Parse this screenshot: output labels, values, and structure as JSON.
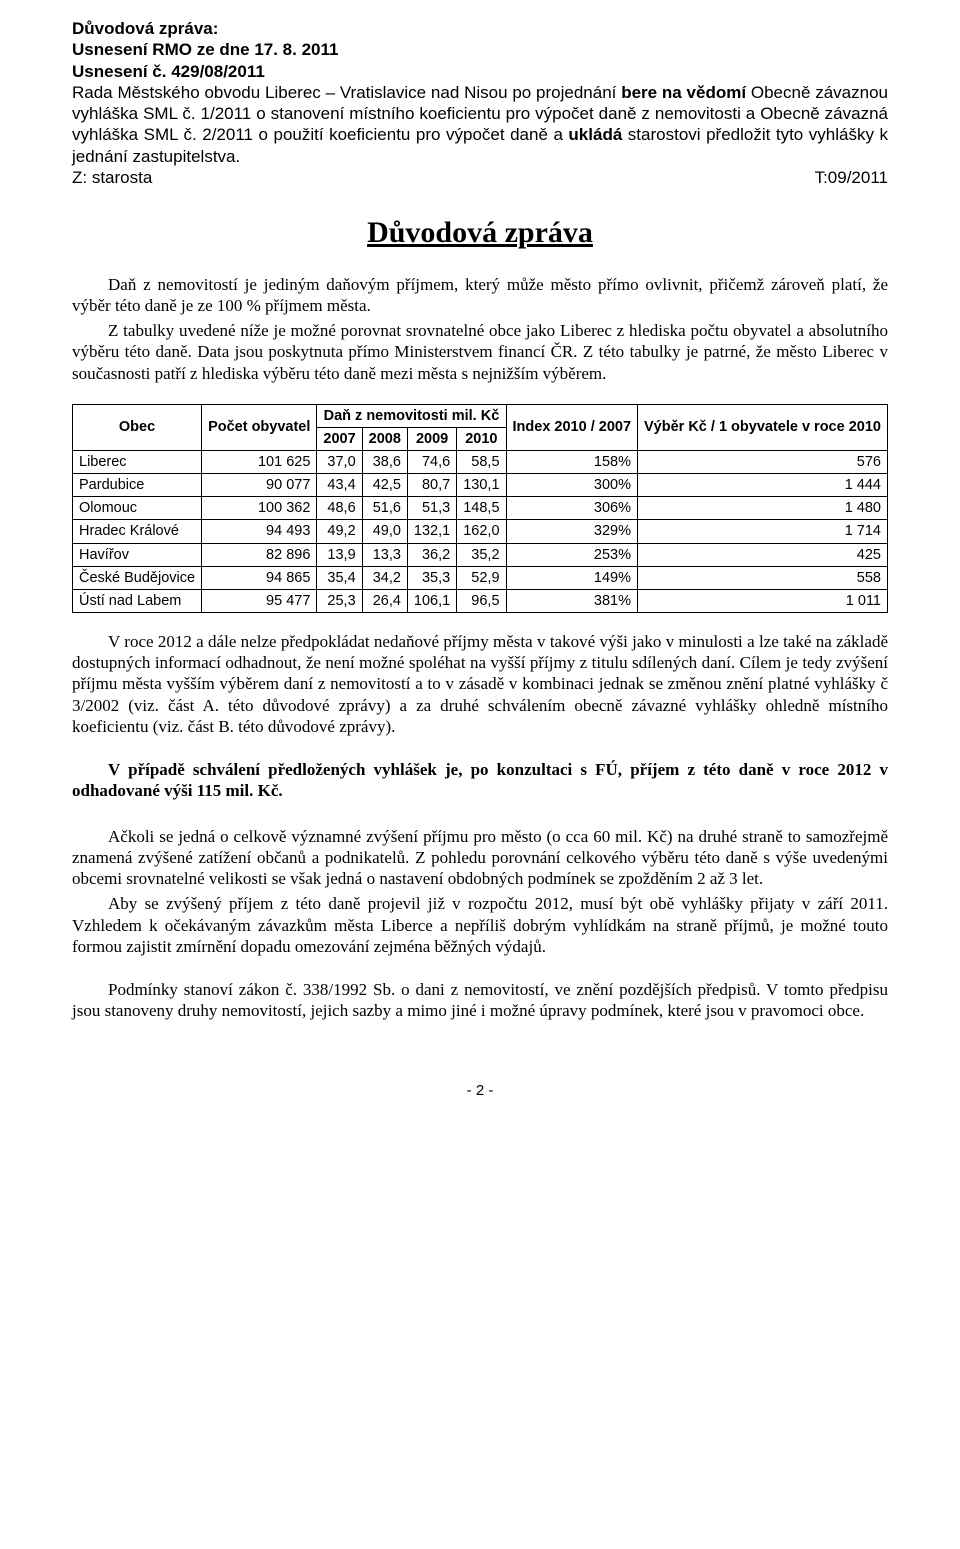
{
  "header": {
    "l1": "Důvodová zpráva:",
    "l2": "Usnesení RMO ze dne 17. 8. 2011",
    "l3": "Usnesení č. 429/08/2011",
    "para_pre": "Rada Městského obvodu Liberec – Vratislavice nad Nisou po projednání ",
    "para_b1": "bere na vědomí",
    "para_mid1": " Obecně závaznou vyhláška SML č. 1/2011 o stanovení místního koeficientu pro výpočet daně z nemovitosti a Obecně závazná vyhláška SML č. 2/2011 o použití koeficientu pro výpočet daně a ",
    "para_b2": "ukládá",
    "para_mid2": " starostovi předložit tyto vyhlášky k jednání zastupitelstva.",
    "z": "Z: starosta",
    "t": "T:09/2011"
  },
  "title": "Důvodová zpráva",
  "paras": {
    "p1": "Daň z nemovitostí je jediným daňovým příjmem, který může město přímo ovlivnit, přičemž zároveň platí, že výběr této daně je ze 100 % příjmem města.",
    "p2": "Z tabulky uvedené níže je možné porovnat srovnatelné obce jako Liberec z hlediska počtu obyvatel a absolutního výběru této daně. Data jsou poskytnuta přímo Ministerstvem financí ČR. Z této tabulky je patrné, že město Liberec v současnosti patří z hlediska výběru této daně mezi města s nejnižším výběrem.",
    "p3": "V roce 2012 a dále nelze předpokládat nedaňové příjmy města v takové výši jako v minulosti a lze také na základě dostupných informací odhadnout, že není možné spoléhat na vyšší příjmy z titulu sdílených daní. Cílem je tedy zvýšení příjmu města vyšším výběrem daní z nemovitostí a to v zásadě v kombinaci jednak se změnou znění platné vyhlášky č 3/2002 (viz. část A. této důvodové zprávy) a za druhé schválením obecně závazné vyhlášky ohledně místního koeficientu (viz. část B. této důvodové zprávy).",
    "p4": "V případě schválení předložených vyhlášek je, po konzultaci s FÚ, příjem z této daně v roce 2012 v odhadované výši 115 mil. Kč.",
    "p5": "Ačkoli se jedná o celkově významné zvýšení příjmu pro město (o cca 60 mil. Kč) na druhé straně to samozřejmě znamená zvýšené zatížení občanů a podnikatelů. Z pohledu porovnání celkového výběru této daně s výše uvedenými obcemi srovnatelné velikosti se však jedná o nastavení obdobných podmínek se zpožděním 2 až 3 let.",
    "p6": "Aby se zvýšený příjem z této daně projevil již v rozpočtu 2012, musí být obě vyhlášky přijaty v září 2011. Vzhledem k očekávaným závazkům města Liberce a nepříliš dobrým vyhlídkám na straně příjmů, je možné touto formou zajistit zmírnění dopadu omezování zejména běžných výdajů.",
    "p7": "Podmínky stanoví zákon č. 338/1992 Sb. o dani z nemovitostí, ve znění pozdějších předpisů. V tomto předpisu jsou stanoveny druhy nemovitostí, jejich sazby a mimo jiné i možné úpravy podmínek, které jsou v pravomoci obce."
  },
  "table": {
    "head": {
      "obec": "Obec",
      "pocet": "Počet obyvatel",
      "dan": "Daň z nemovitosti mil. Kč",
      "index": "Index 2010 / 2007",
      "vyber": "Výběr Kč / 1 obyvatele v roce 2010",
      "y2007": "2007",
      "y2008": "2008",
      "y2009": "2009",
      "y2010": "2010"
    },
    "rows": [
      {
        "obec": "Liberec",
        "pocet": "101 625",
        "c1": "37,0",
        "c2": "38,6",
        "c3": "74,6",
        "c4": "58,5",
        "idx": "158%",
        "vyb": "576"
      },
      {
        "obec": "Pardubice",
        "pocet": "90 077",
        "c1": "43,4",
        "c2": "42,5",
        "c3": "80,7",
        "c4": "130,1",
        "idx": "300%",
        "vyb": "1 444"
      },
      {
        "obec": "Olomouc",
        "pocet": "100 362",
        "c1": "48,6",
        "c2": "51,6",
        "c3": "51,3",
        "c4": "148,5",
        "idx": "306%",
        "vyb": "1 480"
      },
      {
        "obec": "Hradec Králové",
        "pocet": "94 493",
        "c1": "49,2",
        "c2": "49,0",
        "c3": "132,1",
        "c4": "162,0",
        "idx": "329%",
        "vyb": "1 714"
      },
      {
        "obec": "Havířov",
        "pocet": "82 896",
        "c1": "13,9",
        "c2": "13,3",
        "c3": "36,2",
        "c4": "35,2",
        "idx": "253%",
        "vyb": "425"
      },
      {
        "obec": "České Budějovice",
        "pocet": "94 865",
        "c1": "35,4",
        "c2": "34,2",
        "c3": "35,3",
        "c4": "52,9",
        "idx": "149%",
        "vyb": "558"
      },
      {
        "obec": "Ústí nad Labem",
        "pocet": "95 477",
        "c1": "25,3",
        "c2": "26,4",
        "c3": "106,1",
        "c4": "96,5",
        "idx": "381%",
        "vyb": "1 011"
      }
    ]
  },
  "footer": "- 2 -"
}
